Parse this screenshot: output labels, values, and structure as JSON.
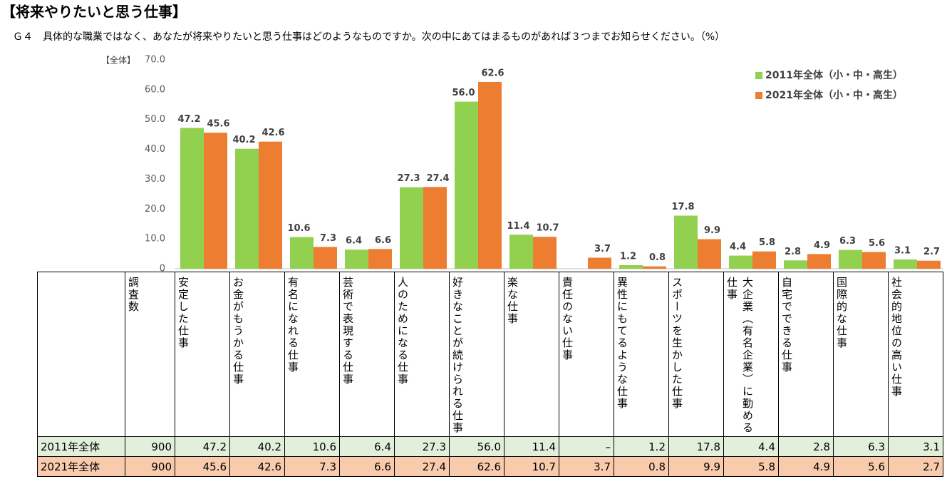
{
  "chart_data": {
    "type": "bar",
    "title": "【将来やりたいと思う仕事】",
    "subtitle": "Ｇ４　具体的な職業ではなく、あなたが将来やりたいと思う仕事はどのようなものですか。次の中にあてはまるものがあれば３つまでお知らせください。（%）",
    "y_label": "【全体】",
    "categories": [
      "安定した仕事",
      "お金がもうかる仕事",
      "有名になれる仕事",
      "芸術で表現する仕事",
      "人のためになる仕事",
      "好きなことが続けられる仕事",
      "楽な仕事",
      "責任のない仕事",
      "異性にもてるような仕事",
      "スポーツを生かした仕事",
      "大企業（有名企業）に勤める仕事",
      "自宅でできる仕事",
      "国際的な仕事",
      "社会的地位の高い仕事"
    ],
    "series": [
      {
        "name": "2011年全体（小・中・高生）",
        "row_label": "2011年全体",
        "count": 900,
        "color": "#92d050",
        "values": [
          47.2,
          40.2,
          10.6,
          6.4,
          27.3,
          56.0,
          11.4,
          null,
          1.2,
          17.8,
          4.4,
          2.8,
          6.3,
          3.1
        ],
        "value_labels": [
          "47.2",
          "40.2",
          "10.6",
          "6.4",
          "27.3",
          "56.0",
          "11.4",
          "–",
          "1.2",
          "17.8",
          "4.4",
          "2.8",
          "6.3",
          "3.1"
        ]
      },
      {
        "name": "2021年全体（小・中・高生）",
        "row_label": "2021年全体",
        "count": 900,
        "color": "#ed7d31",
        "values": [
          45.6,
          42.6,
          7.3,
          6.6,
          27.4,
          62.6,
          10.7,
          3.7,
          0.8,
          9.9,
          5.8,
          4.9,
          5.6,
          2.7
        ],
        "value_labels": [
          "45.6",
          "42.6",
          "7.3",
          "6.6",
          "27.4",
          "62.6",
          "10.7",
          "3.7",
          "0.8",
          "9.9",
          "5.8",
          "4.9",
          "5.6",
          "2.7"
        ]
      }
    ],
    "count_header": "調査数",
    "ylim": [
      0,
      70
    ],
    "yticks": [
      0,
      {
        "value": 10,
        "label": "10.0"
      },
      {
        "value": 20,
        "label": "20.0"
      },
      {
        "value": 30,
        "label": "30.0"
      },
      {
        "value": 40,
        "label": "40.0"
      },
      {
        "value": 50,
        "label": "50.0"
      },
      {
        "value": 60,
        "label": "60.0"
      },
      {
        "value": 70,
        "label": "70.0"
      }
    ],
    "grid": false,
    "legend": "top-right"
  }
}
